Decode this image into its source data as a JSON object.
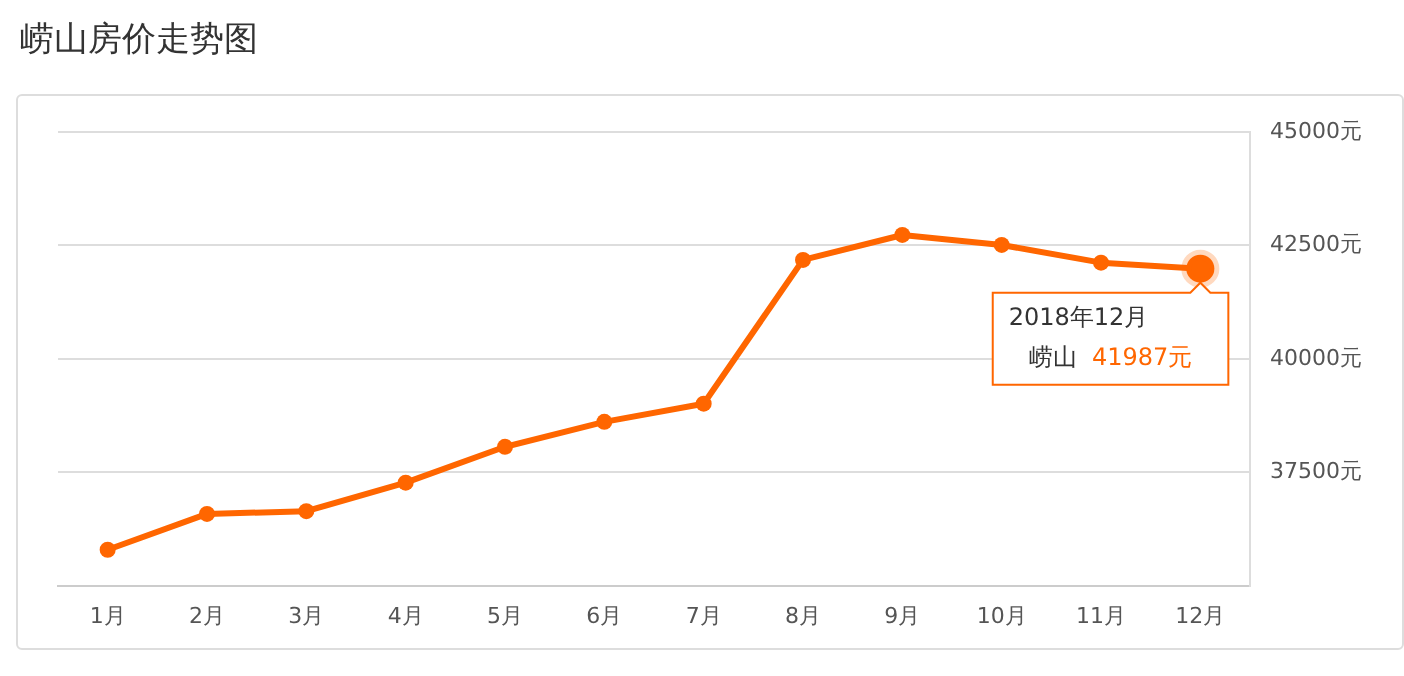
{
  "chart_data": {
    "type": "line",
    "title": "崂山房价走势图",
    "categories": [
      "1月",
      "2月",
      "3月",
      "4月",
      "5月",
      "6月",
      "7月",
      "8月",
      "9月",
      "10月",
      "11月",
      "12月"
    ],
    "series": [
      {
        "name": "崂山",
        "color": "#ff6600",
        "values": [
          35790,
          36580,
          36640,
          37270,
          38060,
          38610,
          39010,
          42180,
          42730,
          42510,
          42120,
          41987
        ],
        "value_labels": [
          null,
          null,
          null,
          null,
          null,
          null,
          null,
          null,
          null,
          null,
          null,
          "41987元"
        ]
      }
    ],
    "ylim": [
      35000,
      45000
    ],
    "yticks": [
      {
        "value": 37500,
        "label": "37500元"
      },
      {
        "value": 40000,
        "label": "40000元"
      },
      {
        "value": 42500,
        "label": "42500元"
      },
      {
        "value": 45000,
        "label": "45000元"
      }
    ],
    "grid": "y",
    "legend": false,
    "marker": "circle",
    "line_style": "solid",
    "annotations": [
      "2018年12月"
    ]
  }
}
